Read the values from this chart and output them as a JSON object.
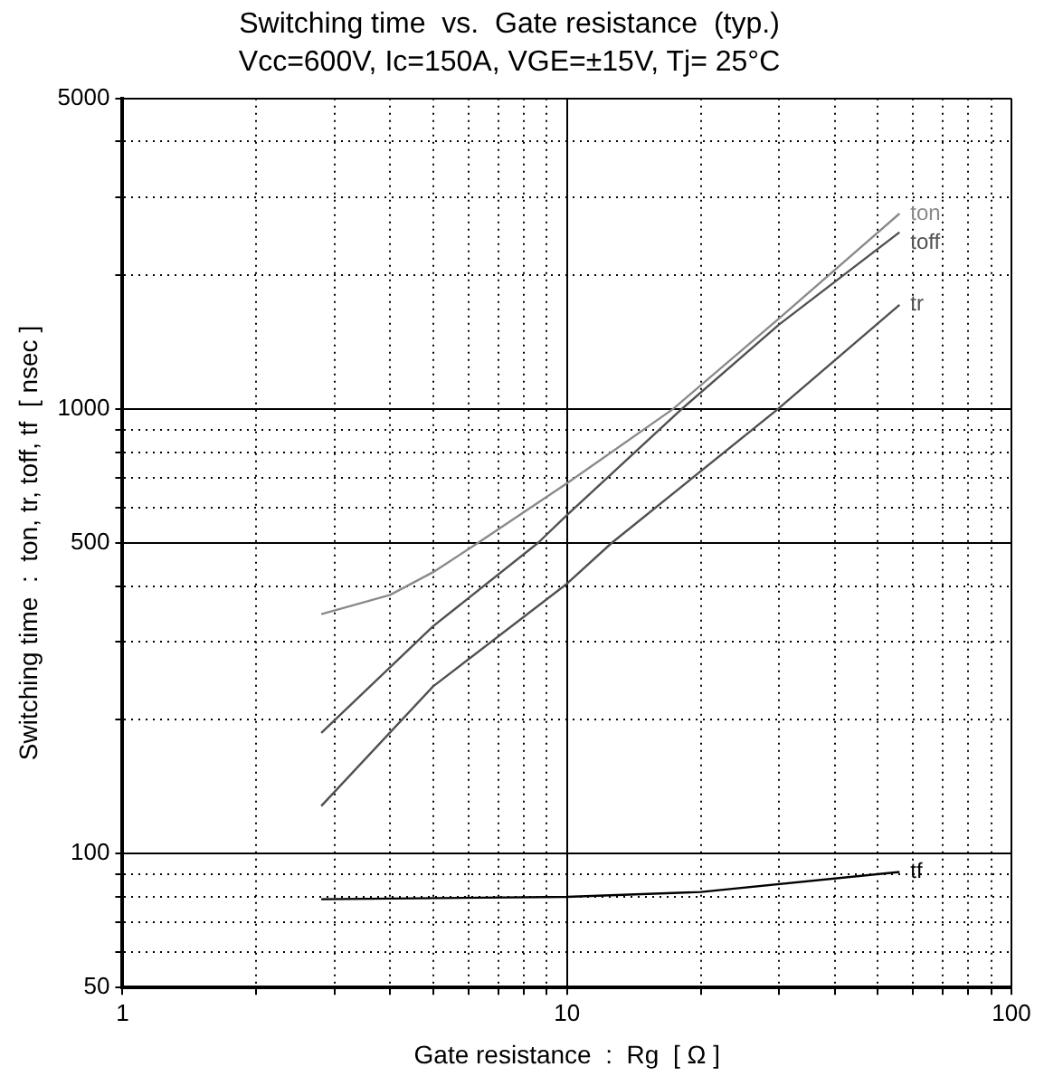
{
  "chart_data": {
    "type": "line",
    "title": "Switching time  vs.  Gate resistance  (typ.)",
    "subtitle": "Vcc=600V, Ic=150A, VGE=±15V, Tj= 25°C",
    "xlabel": "Gate resistance  :  Rg  [ Ω ]",
    "ylabel": "Switching time  :  ton, tr, toff, tf  [ nsec ]",
    "log": "xy",
    "grid": true,
    "legend": false,
    "marker": "none",
    "line_style": "solid",
    "xlim": [
      1,
      100
    ],
    "ylim": [
      50,
      5000
    ],
    "xticks": [
      1,
      {
        "value": 2,
        "label": null
      },
      {
        "value": 3,
        "label": null
      },
      {
        "value": 4,
        "label": null
      },
      {
        "value": 5,
        "label": null
      },
      {
        "value": 6,
        "label": null
      },
      {
        "value": 7,
        "label": null
      },
      {
        "value": 8,
        "label": null
      },
      {
        "value": 9,
        "label": null
      },
      10,
      {
        "value": 20,
        "label": null
      },
      {
        "value": 30,
        "label": null
      },
      {
        "value": 40,
        "label": null
      },
      {
        "value": 50,
        "label": null
      },
      {
        "value": 60,
        "label": null
      },
      {
        "value": 70,
        "label": null
      },
      {
        "value": 80,
        "label": null
      },
      {
        "value": 90,
        "label": null
      },
      100
    ],
    "yticks": [
      50,
      {
        "value": 60,
        "label": null
      },
      {
        "value": 70,
        "label": null
      },
      {
        "value": 80,
        "label": null
      },
      {
        "value": 90,
        "label": null
      },
      100,
      {
        "value": 200,
        "label": null
      },
      {
        "value": 300,
        "label": null
      },
      {
        "value": 400,
        "label": null
      },
      500,
      {
        "value": 600,
        "label": null
      },
      {
        "value": 700,
        "label": null
      },
      {
        "value": 800,
        "label": null
      },
      {
        "value": 900,
        "label": null
      },
      1000,
      {
        "value": 2000,
        "label": null
      },
      {
        "value": 3000,
        "label": null
      },
      {
        "value": 4000,
        "label": null
      },
      5000
    ],
    "series": [
      {
        "name": "ton",
        "color": "#8a8a8a",
        "x": [
          2.8,
          4,
          5,
          6.3,
          10,
          17.3,
          30,
          56
        ],
        "values": [
          346,
          382,
          430,
          500,
          681,
          1000,
          1600,
          2754
        ]
      },
      {
        "name": "toff",
        "color": "#505050",
        "x": [
          2.8,
          5,
          8.6,
          10,
          18.1,
          30,
          56
        ],
        "values": [
          187,
          325,
          500,
          578,
          1000,
          1550,
          2500
        ]
      },
      {
        "name": "tr",
        "color": "#505050",
        "x": [
          2.8,
          5,
          10,
          12.6,
          29.8,
          56
        ],
        "values": [
          128,
          238,
          405,
          500,
          1000,
          1717
        ]
      },
      {
        "name": "tf",
        "color": "#000000",
        "x": [
          2.8,
          10,
          20,
          56
        ],
        "values": [
          79,
          80,
          82,
          91
        ]
      }
    ]
  }
}
